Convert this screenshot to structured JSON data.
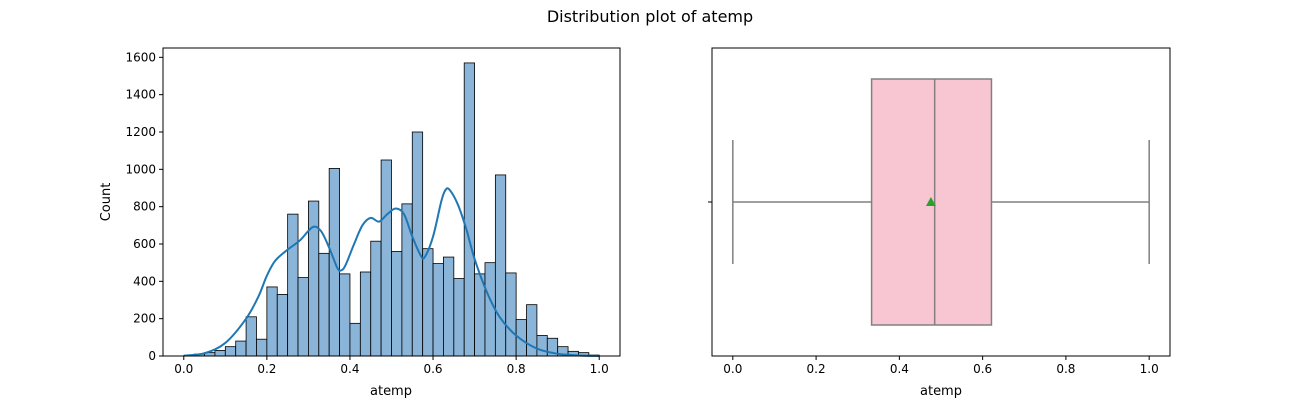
{
  "figure": {
    "title": "Distribution plot of atemp"
  },
  "chart_data": [
    {
      "type": "bar",
      "subtype": "histogram",
      "xlabel": "atemp",
      "ylabel": "Count",
      "xlim": [
        -0.05,
        1.05
      ],
      "ylim": [
        0,
        1650
      ],
      "x_ticks": [
        0.0,
        0.2,
        0.4,
        0.6,
        0.8,
        1.0
      ],
      "x_tick_labels": [
        "0.0",
        "0.2",
        "0.4",
        "0.6",
        "0.8",
        "1.0"
      ],
      "y_ticks": [
        0,
        200,
        400,
        600,
        800,
        1000,
        1200,
        1400,
        1600
      ],
      "y_tick_labels": [
        "0",
        "200",
        "400",
        "600",
        "800",
        "1000",
        "1200",
        "1400",
        "1600"
      ],
      "bin_range": [
        0.0,
        1.0
      ],
      "counts": [
        2,
        10,
        18,
        30,
        50,
        80,
        210,
        90,
        370,
        330,
        760,
        420,
        830,
        550,
        1005,
        440,
        175,
        450,
        615,
        1050,
        560,
        815,
        1200,
        575,
        495,
        530,
        415,
        1570,
        440,
        500,
        970,
        445,
        195,
        275,
        110,
        95,
        50,
        25,
        18,
        5
      ],
      "kde": {
        "x": [
          0.0,
          0.05,
          0.1,
          0.15,
          0.18,
          0.2,
          0.22,
          0.25,
          0.28,
          0.31,
          0.33,
          0.35,
          0.37,
          0.38,
          0.39,
          0.41,
          0.43,
          0.45,
          0.47,
          0.49,
          0.51,
          0.53,
          0.55,
          0.57,
          0.58,
          0.6,
          0.62,
          0.63,
          0.64,
          0.66,
          0.68,
          0.7,
          0.73,
          0.76,
          0.8,
          0.85,
          0.9,
          0.95,
          1.0
        ],
        "y": [
          2,
          15,
          70,
          200,
          320,
          430,
          510,
          570,
          620,
          690,
          670,
          580,
          470,
          460,
          490,
          600,
          700,
          740,
          720,
          760,
          790,
          760,
          640,
          540,
          530,
          640,
          830,
          890,
          890,
          810,
          680,
          520,
          340,
          210,
          110,
          40,
          12,
          3,
          0
        ]
      },
      "bar_color": "#8ab4d8",
      "line_color": "#1f77b4"
    },
    {
      "type": "box",
      "xlabel": "atemp",
      "xlim": [
        -0.05,
        1.05
      ],
      "x_ticks": [
        0.0,
        0.2,
        0.4,
        0.6,
        0.8,
        1.0
      ],
      "x_tick_labels": [
        "0.0",
        "0.2",
        "0.4",
        "0.6",
        "0.8",
        "1.0"
      ],
      "min": 0.0,
      "q1": 0.3333,
      "median": 0.4848,
      "q3": 0.6212,
      "max": 1.0,
      "mean": 0.4758,
      "box_color": "#f8c6d2",
      "line_color": "#808080",
      "mean_marker_color": "#2ca02c"
    }
  ]
}
